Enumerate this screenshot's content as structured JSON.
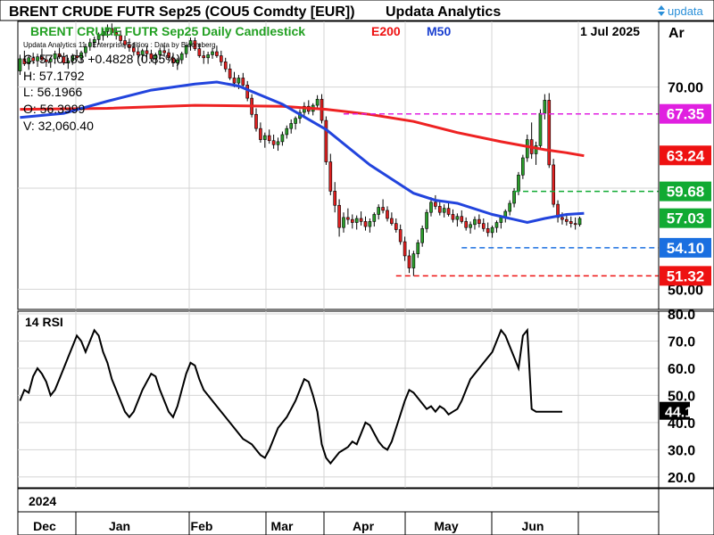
{
  "header": {
    "title": "BRENT CRUDE FUTR  Sep25 (COU5 Comdty [EUR])",
    "vendor": "Updata Analytics",
    "logo_text": "updata"
  },
  "legend": {
    "series_label": "BRENT CRUDE FUTR  Sep25 Daily Candlestick",
    "e200_label": "E200",
    "m50_label": "M50",
    "date": "1 Jul 2025",
    "corner": "Ar",
    "credit": "Updata Analytics 11 - Enterprise Edition : Data by Bloomberg",
    "ohlc": [
      "C: 57.0183  +0.4828 (0.85%)",
      "H: 57.1792",
      "L: 56.1966",
      "O: 56.3999",
      "V: 32,060.40"
    ]
  },
  "rsi": {
    "label": "14 RSI"
  },
  "colors": {
    "up": "#2a9d2a",
    "down": "#e02020",
    "e200": "#ee2222",
    "m50": "#2244dd",
    "legend_green": "#22a022",
    "magenta": "#e020e0",
    "red_box": "#ee1111",
    "green_box": "#11aa33",
    "blue_box": "#1a6fe0"
  },
  "chart_data": [
    {
      "type": "candlestick",
      "title": "BRENT CRUDE FUTR  Sep25 Daily Candlestick",
      "x_labels": [
        "Dec",
        "Jan",
        "Feb",
        "Mar",
        "Apr",
        "May",
        "Jun"
      ],
      "year_label": "2024",
      "ylim": [
        48.0,
        76.5
      ],
      "y_ticks": [
        50.0,
        60.0,
        70.0
      ],
      "y_tick_labels": [
        "50.00",
        "60.00",
        "70.00"
      ],
      "grid": true,
      "ohlc": [
        [
          71.6,
          73.2,
          71.2,
          72.8
        ],
        [
          72.8,
          73.6,
          72.1,
          72.3
        ],
        [
          72.3,
          73.1,
          71.7,
          72.9
        ],
        [
          72.9,
          73.4,
          72.3,
          72.6
        ],
        [
          72.6,
          73.3,
          72.0,
          73.0
        ],
        [
          73.0,
          73.8,
          72.5,
          72.7
        ],
        [
          72.7,
          73.2,
          72.0,
          72.5
        ],
        [
          72.5,
          73.0,
          71.9,
          72.8
        ],
        [
          72.8,
          73.6,
          72.3,
          73.3
        ],
        [
          73.3,
          73.9,
          72.8,
          73.0
        ],
        [
          73.0,
          73.4,
          72.2,
          72.4
        ],
        [
          72.4,
          72.9,
          71.8,
          72.6
        ],
        [
          72.6,
          73.3,
          72.2,
          73.1
        ],
        [
          73.1,
          73.7,
          72.6,
          72.9
        ],
        [
          72.9,
          73.6,
          72.4,
          73.4
        ],
        [
          73.4,
          74.3,
          73.0,
          74.0
        ],
        [
          74.0,
          74.8,
          73.6,
          74.4
        ],
        [
          74.4,
          75.0,
          73.9,
          74.7
        ],
        [
          74.7,
          75.4,
          74.2,
          75.1
        ],
        [
          75.1,
          75.8,
          74.6,
          75.5
        ],
        [
          75.5,
          76.2,
          74.9,
          75.8
        ],
        [
          75.8,
          76.3,
          75.1,
          75.4
        ],
        [
          75.4,
          75.9,
          74.7,
          75.1
        ],
        [
          75.1,
          75.6,
          74.3,
          74.6
        ],
        [
          74.6,
          75.1,
          73.8,
          74.2
        ],
        [
          74.2,
          74.8,
          73.5,
          73.9
        ],
        [
          73.9,
          74.4,
          73.1,
          73.5
        ],
        [
          73.5,
          74.1,
          72.8,
          73.2
        ],
        [
          73.2,
          73.8,
          72.6,
          73.6
        ],
        [
          73.6,
          74.1,
          72.9,
          73.3
        ],
        [
          73.3,
          73.7,
          72.5,
          72.8
        ],
        [
          72.8,
          73.4,
          72.2,
          73.2
        ],
        [
          73.2,
          73.9,
          72.7,
          73.6
        ],
        [
          73.6,
          74.2,
          73.0,
          73.4
        ],
        [
          73.4,
          73.8,
          72.6,
          72.9
        ],
        [
          72.9,
          73.4,
          72.0,
          72.4
        ],
        [
          72.4,
          72.9,
          71.7,
          72.7
        ],
        [
          72.7,
          73.5,
          72.3,
          73.3
        ],
        [
          73.3,
          74.2,
          72.9,
          74.1
        ],
        [
          74.1,
          74.9,
          73.6,
          74.6
        ],
        [
          74.6,
          74.9,
          73.6,
          73.8
        ],
        [
          73.8,
          74.3,
          72.9,
          73.1
        ],
        [
          73.1,
          73.6,
          72.3,
          72.9
        ],
        [
          72.9,
          73.5,
          72.3,
          73.2
        ],
        [
          73.2,
          73.9,
          72.8,
          73.5
        ],
        [
          73.5,
          74.1,
          72.9,
          73.1
        ],
        [
          73.1,
          73.6,
          72.1,
          72.5
        ],
        [
          72.5,
          72.9,
          71.5,
          71.8
        ],
        [
          71.8,
          72.3,
          70.7,
          70.9
        ],
        [
          70.9,
          71.5,
          70.0,
          70.4
        ],
        [
          70.4,
          71.2,
          69.8,
          70.9
        ],
        [
          70.9,
          71.4,
          69.9,
          70.2
        ],
        [
          70.2,
          70.6,
          68.6,
          68.9
        ],
        [
          68.9,
          69.3,
          67.0,
          67.3
        ],
        [
          67.3,
          67.9,
          65.6,
          65.9
        ],
        [
          65.9,
          66.5,
          64.5,
          64.8
        ],
        [
          64.8,
          65.5,
          64.0,
          65.2
        ],
        [
          65.2,
          65.8,
          64.4,
          64.7
        ],
        [
          64.7,
          65.3,
          63.9,
          64.3
        ],
        [
          64.3,
          65.0,
          63.7,
          64.6
        ],
        [
          64.6,
          65.6,
          64.2,
          65.3
        ],
        [
          65.3,
          66.2,
          64.9,
          65.9
        ],
        [
          65.9,
          66.8,
          65.4,
          66.4
        ],
        [
          66.4,
          67.1,
          65.8,
          66.9
        ],
        [
          66.9,
          67.8,
          66.4,
          67.5
        ],
        [
          67.5,
          68.5,
          67.0,
          68.1
        ],
        [
          68.1,
          68.7,
          67.3,
          67.6
        ],
        [
          67.6,
          68.4,
          67.2,
          68.2
        ],
        [
          68.2,
          69.2,
          67.8,
          68.8
        ],
        [
          68.8,
          69.3,
          66.4,
          66.7
        ],
        [
          66.7,
          67.1,
          62.3,
          62.6
        ],
        [
          62.6,
          63.4,
          59.3,
          59.7
        ],
        [
          59.7,
          60.6,
          57.6,
          58.3
        ],
        [
          58.3,
          58.9,
          55.2,
          56.1
        ],
        [
          56.1,
          57.6,
          55.6,
          57.1
        ],
        [
          57.1,
          58.0,
          56.4,
          56.9
        ],
        [
          56.9,
          57.4,
          56.0,
          56.6
        ],
        [
          56.6,
          57.3,
          55.9,
          57.0
        ],
        [
          57.0,
          57.7,
          56.3,
          56.7
        ],
        [
          56.7,
          57.2,
          55.8,
          56.2
        ],
        [
          56.2,
          57.0,
          55.6,
          56.7
        ],
        [
          56.7,
          57.6,
          56.2,
          57.4
        ],
        [
          57.4,
          58.4,
          56.9,
          58.1
        ],
        [
          58.1,
          58.9,
          57.5,
          57.8
        ],
        [
          57.8,
          58.2,
          56.7,
          57.0
        ],
        [
          57.0,
          57.6,
          56.3,
          56.5
        ],
        [
          56.5,
          57.0,
          55.6,
          55.9
        ],
        [
          55.9,
          56.4,
          54.4,
          54.7
        ],
        [
          54.7,
          55.2,
          52.8,
          53.3
        ],
        [
          53.3,
          53.9,
          51.6,
          52.1
        ],
        [
          52.1,
          53.8,
          51.3,
          53.5
        ],
        [
          53.5,
          54.9,
          53.1,
          54.6
        ],
        [
          54.6,
          56.3,
          54.2,
          56.0
        ],
        [
          56.0,
          57.9,
          55.6,
          57.6
        ],
        [
          57.6,
          59.1,
          57.2,
          58.6
        ],
        [
          58.6,
          59.3,
          57.9,
          58.2
        ],
        [
          58.2,
          58.8,
          57.3,
          57.6
        ],
        [
          57.6,
          58.4,
          57.1,
          58.0
        ],
        [
          58.0,
          58.6,
          57.2,
          57.4
        ],
        [
          57.4,
          57.9,
          56.6,
          56.9
        ],
        [
          56.9,
          57.5,
          56.2,
          57.2
        ],
        [
          57.2,
          57.8,
          56.5,
          56.7
        ],
        [
          56.7,
          57.1,
          55.8,
          56.1
        ],
        [
          56.1,
          56.7,
          55.5,
          56.4
        ],
        [
          56.4,
          57.2,
          55.9,
          56.9
        ],
        [
          56.9,
          57.4,
          56.1,
          56.5
        ],
        [
          56.5,
          57.0,
          55.7,
          56.0
        ],
        [
          56.0,
          56.6,
          55.2,
          55.6
        ],
        [
          55.6,
          56.3,
          55.1,
          56.1
        ],
        [
          56.1,
          56.8,
          55.6,
          56.6
        ],
        [
          56.6,
          57.3,
          56.0,
          57.1
        ],
        [
          57.1,
          57.9,
          56.6,
          57.7
        ],
        [
          57.7,
          58.8,
          57.3,
          58.5
        ],
        [
          58.5,
          60.0,
          58.1,
          59.7
        ],
        [
          59.7,
          61.6,
          59.3,
          61.3
        ],
        [
          61.3,
          63.3,
          60.9,
          63.0
        ],
        [
          63.0,
          65.3,
          62.6,
          64.8
        ],
        [
          64.8,
          66.5,
          62.9,
          63.4
        ],
        [
          63.4,
          64.6,
          62.3,
          64.2
        ],
        [
          64.2,
          67.8,
          63.8,
          67.4
        ],
        [
          67.4,
          69.3,
          66.8,
          68.7
        ],
        [
          68.7,
          69.4,
          62.0,
          62.3
        ],
        [
          62.3,
          62.9,
          58.1,
          58.4
        ],
        [
          58.4,
          58.8,
          56.6,
          57.1
        ],
        [
          57.1,
          57.6,
          56.4,
          56.9
        ],
        [
          56.9,
          57.4,
          56.3,
          56.7
        ],
        [
          56.7,
          57.2,
          56.1,
          56.5
        ],
        [
          56.5,
          57.1,
          55.9,
          56.4
        ],
        [
          56.4,
          57.18,
          56.2,
          57.0
        ]
      ],
      "e200": [
        [
          0,
          67.8
        ],
        [
          20,
          67.9
        ],
        [
          40,
          68.2
        ],
        [
          60,
          68.1
        ],
        [
          70,
          67.8
        ],
        [
          80,
          67.3
        ],
        [
          90,
          66.6
        ],
        [
          100,
          65.5
        ],
        [
          110,
          64.6
        ],
        [
          115,
          64.2
        ],
        [
          120,
          63.8
        ],
        [
          125,
          63.5
        ],
        [
          129,
          63.2
        ]
      ],
      "m50": [
        [
          0,
          67.0
        ],
        [
          10,
          67.4
        ],
        [
          20,
          68.6
        ],
        [
          30,
          69.7
        ],
        [
          40,
          70.3
        ],
        [
          45,
          70.5
        ],
        [
          50,
          70.1
        ],
        [
          60,
          68.3
        ],
        [
          70,
          65.8
        ],
        [
          80,
          62.3
        ],
        [
          90,
          59.5
        ],
        [
          95,
          58.8
        ],
        [
          100,
          58.5
        ],
        [
          108,
          57.4
        ],
        [
          113,
          56.9
        ],
        [
          116,
          56.6
        ],
        [
          120,
          57.0
        ],
        [
          125,
          57.4
        ],
        [
          129,
          57.5
        ]
      ],
      "levels": [
        {
          "value": 67.35,
          "label": "67.35",
          "style": "magenta"
        },
        {
          "value": 63.24,
          "label": "63.24",
          "style": "red"
        },
        {
          "value": 59.68,
          "label": "59.68",
          "style": "green"
        },
        {
          "value": 57.03,
          "label": "57.03",
          "style": "green"
        },
        {
          "value": 54.1,
          "label": "54.10",
          "style": "blue"
        },
        {
          "value": 51.32,
          "label": "51.32",
          "style": "red"
        }
      ]
    },
    {
      "type": "line",
      "title": "14 RSI",
      "ylim": [
        16.0,
        81.0
      ],
      "y_ticks": [
        20.0,
        30.0,
        40.0,
        50.0,
        60.0,
        70.0,
        80.0
      ],
      "y_tick_labels": [
        "20.0",
        "30.0",
        "40.0",
        "50.0",
        "60.0",
        "70.0",
        "80.0"
      ],
      "grid": true,
      "values": [
        48,
        52,
        51,
        57,
        60,
        58,
        55,
        50,
        52,
        56,
        60,
        64,
        68,
        72,
        70,
        66,
        70,
        74,
        72,
        66,
        62,
        56,
        52,
        48,
        44,
        42,
        44,
        48,
        52,
        55,
        58,
        57,
        52,
        48,
        44,
        42,
        46,
        52,
        58,
        62,
        61,
        56,
        52,
        50,
        48,
        46,
        44,
        42,
        40,
        38,
        36,
        34,
        33,
        32,
        30,
        28,
        27,
        30,
        34,
        38,
        40,
        42,
        45,
        48,
        52,
        56,
        55,
        50,
        44,
        32,
        27,
        25,
        27,
        29,
        30,
        31,
        33,
        32,
        36,
        40,
        39,
        36,
        33,
        31,
        30,
        33,
        38,
        43,
        48,
        52,
        51,
        49,
        47,
        45,
        46,
        44,
        46,
        45,
        43,
        44,
        45,
        48,
        52,
        56,
        58,
        60,
        62,
        64,
        66,
        70,
        74,
        72,
        68,
        64,
        60,
        72,
        74,
        45,
        44,
        44,
        44,
        44,
        44,
        44,
        44
      ],
      "last_label": "44.1"
    }
  ]
}
